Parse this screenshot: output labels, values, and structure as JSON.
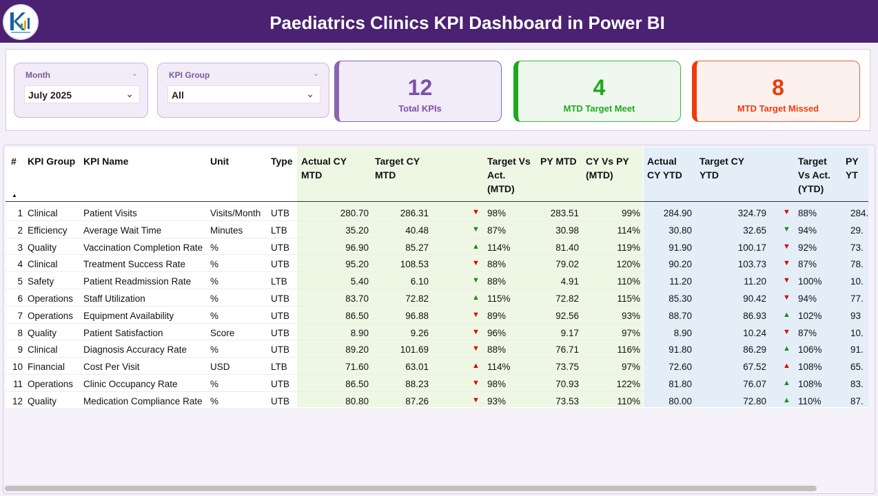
{
  "header": {
    "title": "Paediatrics Clinics KPI Dashboard  in Power BI"
  },
  "filters": {
    "month": {
      "label": "Month",
      "value": "July 2025"
    },
    "kpi_group": {
      "label": "KPI Group",
      "value": "All"
    }
  },
  "cards": [
    {
      "value": "12",
      "label": "Total KPIs",
      "color": "#7d4fa8"
    },
    {
      "value": "4",
      "label": "MTD Target Meet",
      "color": "#1fa81f"
    },
    {
      "value": "8",
      "label": "MTD Target Missed",
      "color": "#ee3b0d"
    }
  ],
  "table": {
    "headers": {
      "num": "#",
      "group": "KPI Group",
      "name": "KPI Name",
      "unit": "Unit",
      "type": "Type",
      "actual_mtd": [
        "Actual CY",
        "MTD"
      ],
      "target_mtd": [
        "Target CY",
        "MTD"
      ],
      "tva_mtd": [
        "Target Vs",
        "Act.",
        "(MTD)"
      ],
      "py_mtd": "PY MTD",
      "cyvspy_mtd": [
        "CY Vs PY",
        "(MTD)"
      ],
      "actual_ytd": [
        "Actual",
        "CY YTD"
      ],
      "target_ytd": [
        "Target CY",
        "YTD"
      ],
      "tva_ytd": [
        "Target",
        "Vs Act.",
        "(YTD)"
      ],
      "py_ytd": "PY YT"
    },
    "rows": [
      {
        "n": "1",
        "group": "Clinical",
        "name": "Patient Visits",
        "unit": "Visits/Month",
        "type": "UTB",
        "act_mtd": "280.70",
        "tgt_mtd": "286.31",
        "ind_mtd": "down-red",
        "tva_mtd": "98%",
        "py_mtd": "283.51",
        "cvp_mtd": "99%",
        "act_ytd": "284.90",
        "tgt_ytd": "324.79",
        "ind_ytd": "down-red",
        "tva_ytd": "88%",
        "py_ytd": "284."
      },
      {
        "n": "2",
        "group": "Efficiency",
        "name": "Average Wait Time",
        "unit": "Minutes",
        "type": "LTB",
        "act_mtd": "35.20",
        "tgt_mtd": "40.48",
        "ind_mtd": "down-green",
        "tva_mtd": "87%",
        "py_mtd": "30.98",
        "cvp_mtd": "114%",
        "act_ytd": "30.80",
        "tgt_ytd": "32.65",
        "ind_ytd": "down-green",
        "tva_ytd": "94%",
        "py_ytd": "29."
      },
      {
        "n": "3",
        "group": "Quality",
        "name": "Vaccination Completion Rate",
        "unit": "%",
        "type": "UTB",
        "act_mtd": "96.90",
        "tgt_mtd": "85.27",
        "ind_mtd": "up-green",
        "tva_mtd": "114%",
        "py_mtd": "81.40",
        "cvp_mtd": "119%",
        "act_ytd": "91.90",
        "tgt_ytd": "100.17",
        "ind_ytd": "down-red",
        "tva_ytd": "92%",
        "py_ytd": "73."
      },
      {
        "n": "4",
        "group": "Clinical",
        "name": "Treatment Success Rate",
        "unit": "%",
        "type": "UTB",
        "act_mtd": "95.20",
        "tgt_mtd": "108.53",
        "ind_mtd": "down-red",
        "tva_mtd": "88%",
        "py_mtd": "79.02",
        "cvp_mtd": "120%",
        "act_ytd": "90.20",
        "tgt_ytd": "103.73",
        "ind_ytd": "down-red",
        "tva_ytd": "87%",
        "py_ytd": "78."
      },
      {
        "n": "5",
        "group": "Safety",
        "name": "Patient Readmission Rate",
        "unit": "%",
        "type": "LTB",
        "act_mtd": "5.40",
        "tgt_mtd": "6.10",
        "ind_mtd": "down-green",
        "tva_mtd": "88%",
        "py_mtd": "4.91",
        "cvp_mtd": "110%",
        "act_ytd": "11.20",
        "tgt_ytd": "11.20",
        "ind_ytd": "down-red",
        "tva_ytd": "100%",
        "py_ytd": "10."
      },
      {
        "n": "6",
        "group": "Operations",
        "name": "Staff Utilization",
        "unit": "%",
        "type": "UTB",
        "act_mtd": "83.70",
        "tgt_mtd": "72.82",
        "ind_mtd": "up-green",
        "tva_mtd": "115%",
        "py_mtd": "72.82",
        "cvp_mtd": "115%",
        "act_ytd": "85.30",
        "tgt_ytd": "90.42",
        "ind_ytd": "down-red",
        "tva_ytd": "94%",
        "py_ytd": "77."
      },
      {
        "n": "7",
        "group": "Operations",
        "name": "Equipment Availability",
        "unit": "%",
        "type": "UTB",
        "act_mtd": "86.50",
        "tgt_mtd": "96.88",
        "ind_mtd": "down-red",
        "tva_mtd": "89%",
        "py_mtd": "92.56",
        "cvp_mtd": "93%",
        "act_ytd": "88.70",
        "tgt_ytd": "86.93",
        "ind_ytd": "up-green",
        "tva_ytd": "102%",
        "py_ytd": "93"
      },
      {
        "n": "8",
        "group": "Quality",
        "name": "Patient Satisfaction",
        "unit": "Score",
        "type": "UTB",
        "act_mtd": "8.90",
        "tgt_mtd": "9.26",
        "ind_mtd": "down-red",
        "tva_mtd": "96%",
        "py_mtd": "9.17",
        "cvp_mtd": "97%",
        "act_ytd": "8.90",
        "tgt_ytd": "10.24",
        "ind_ytd": "down-red",
        "tva_ytd": "87%",
        "py_ytd": "10."
      },
      {
        "n": "9",
        "group": "Clinical",
        "name": "Diagnosis Accuracy Rate",
        "unit": "%",
        "type": "UTB",
        "act_mtd": "89.20",
        "tgt_mtd": "101.69",
        "ind_mtd": "down-red",
        "tva_mtd": "88%",
        "py_mtd": "76.71",
        "cvp_mtd": "116%",
        "act_ytd": "91.80",
        "tgt_ytd": "86.29",
        "ind_ytd": "up-green",
        "tva_ytd": "106%",
        "py_ytd": "91."
      },
      {
        "n": "10",
        "group": "Financial",
        "name": "Cost Per Visit",
        "unit": "USD",
        "type": "LTB",
        "act_mtd": "71.60",
        "tgt_mtd": "63.01",
        "ind_mtd": "up-red",
        "tva_mtd": "114%",
        "py_mtd": "73.75",
        "cvp_mtd": "97%",
        "act_ytd": "72.60",
        "tgt_ytd": "67.52",
        "ind_ytd": "up-red",
        "tva_ytd": "108%",
        "py_ytd": "65."
      },
      {
        "n": "11",
        "group": "Operations",
        "name": "Clinic Occupancy Rate",
        "unit": "%",
        "type": "UTB",
        "act_mtd": "86.50",
        "tgt_mtd": "88.23",
        "ind_mtd": "down-red",
        "tva_mtd": "98%",
        "py_mtd": "70.93",
        "cvp_mtd": "122%",
        "act_ytd": "81.80",
        "tgt_ytd": "76.07",
        "ind_ytd": "up-green",
        "tva_ytd": "108%",
        "py_ytd": "83."
      },
      {
        "n": "12",
        "group": "Quality",
        "name": "Medication Compliance Rate",
        "unit": "%",
        "type": "UTB",
        "act_mtd": "80.80",
        "tgt_mtd": "87.26",
        "ind_mtd": "down-red",
        "tva_mtd": "93%",
        "py_mtd": "73.53",
        "cvp_mtd": "110%",
        "act_ytd": "80.00",
        "tgt_ytd": "72.80",
        "ind_ytd": "up-green",
        "tva_ytd": "110%",
        "py_ytd": "87."
      }
    ]
  },
  "colors": {
    "header_bg": "#4a2271",
    "red": "#e00000",
    "green": "#1a8a1a",
    "mtd_bg": "#eef7e4",
    "ytd_bg": "#e3eef9"
  }
}
